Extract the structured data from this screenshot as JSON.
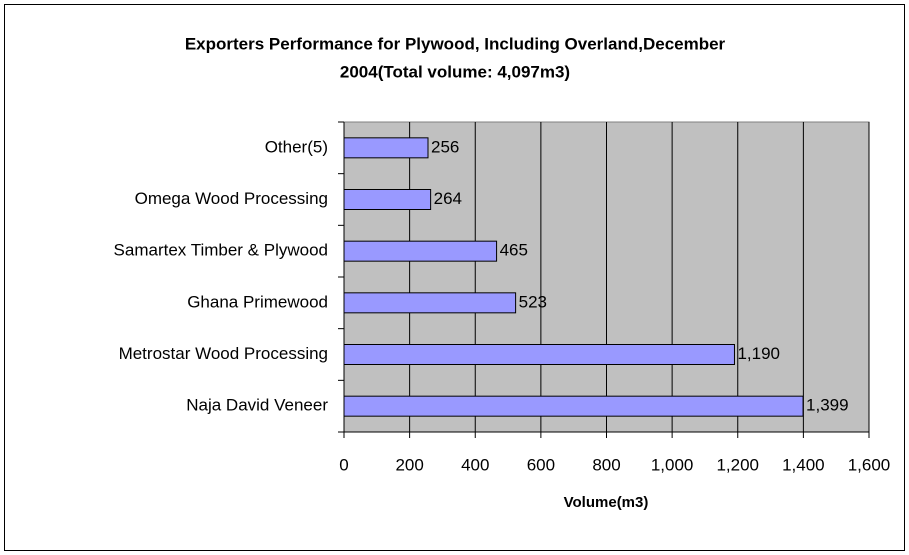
{
  "chart_data": {
    "type": "barh",
    "title": [
      "Exporters Performance for Plywood, Including Overland,December",
      "2004(Total volume: 4,097m3)"
    ],
    "xlabel": "Volume(m3)",
    "categories": [
      "Other(5)",
      "Omega Wood Processing",
      "Samartex Timber & Plywood",
      "Ghana Primewood",
      "Metrostar Wood Processing",
      "Naja David Veneer"
    ],
    "values": [
      256,
      264,
      465,
      523,
      1190,
      1399
    ],
    "value_labels": [
      "256",
      "264",
      "465",
      "523",
      "1,190",
      "1,399"
    ],
    "color": "#9999ff",
    "plot_background": "#c0c0c0",
    "xlim": [
      0,
      1600
    ],
    "xticks": [
      0,
      200,
      400,
      600,
      800,
      {
        "value": 1000,
        "label": "1,000"
      },
      {
        "value": 1200,
        "label": "1,200"
      },
      {
        "value": 1400,
        "label": "1,400"
      },
      {
        "value": 1600,
        "label": "1,600"
      }
    ],
    "grid": true
  }
}
